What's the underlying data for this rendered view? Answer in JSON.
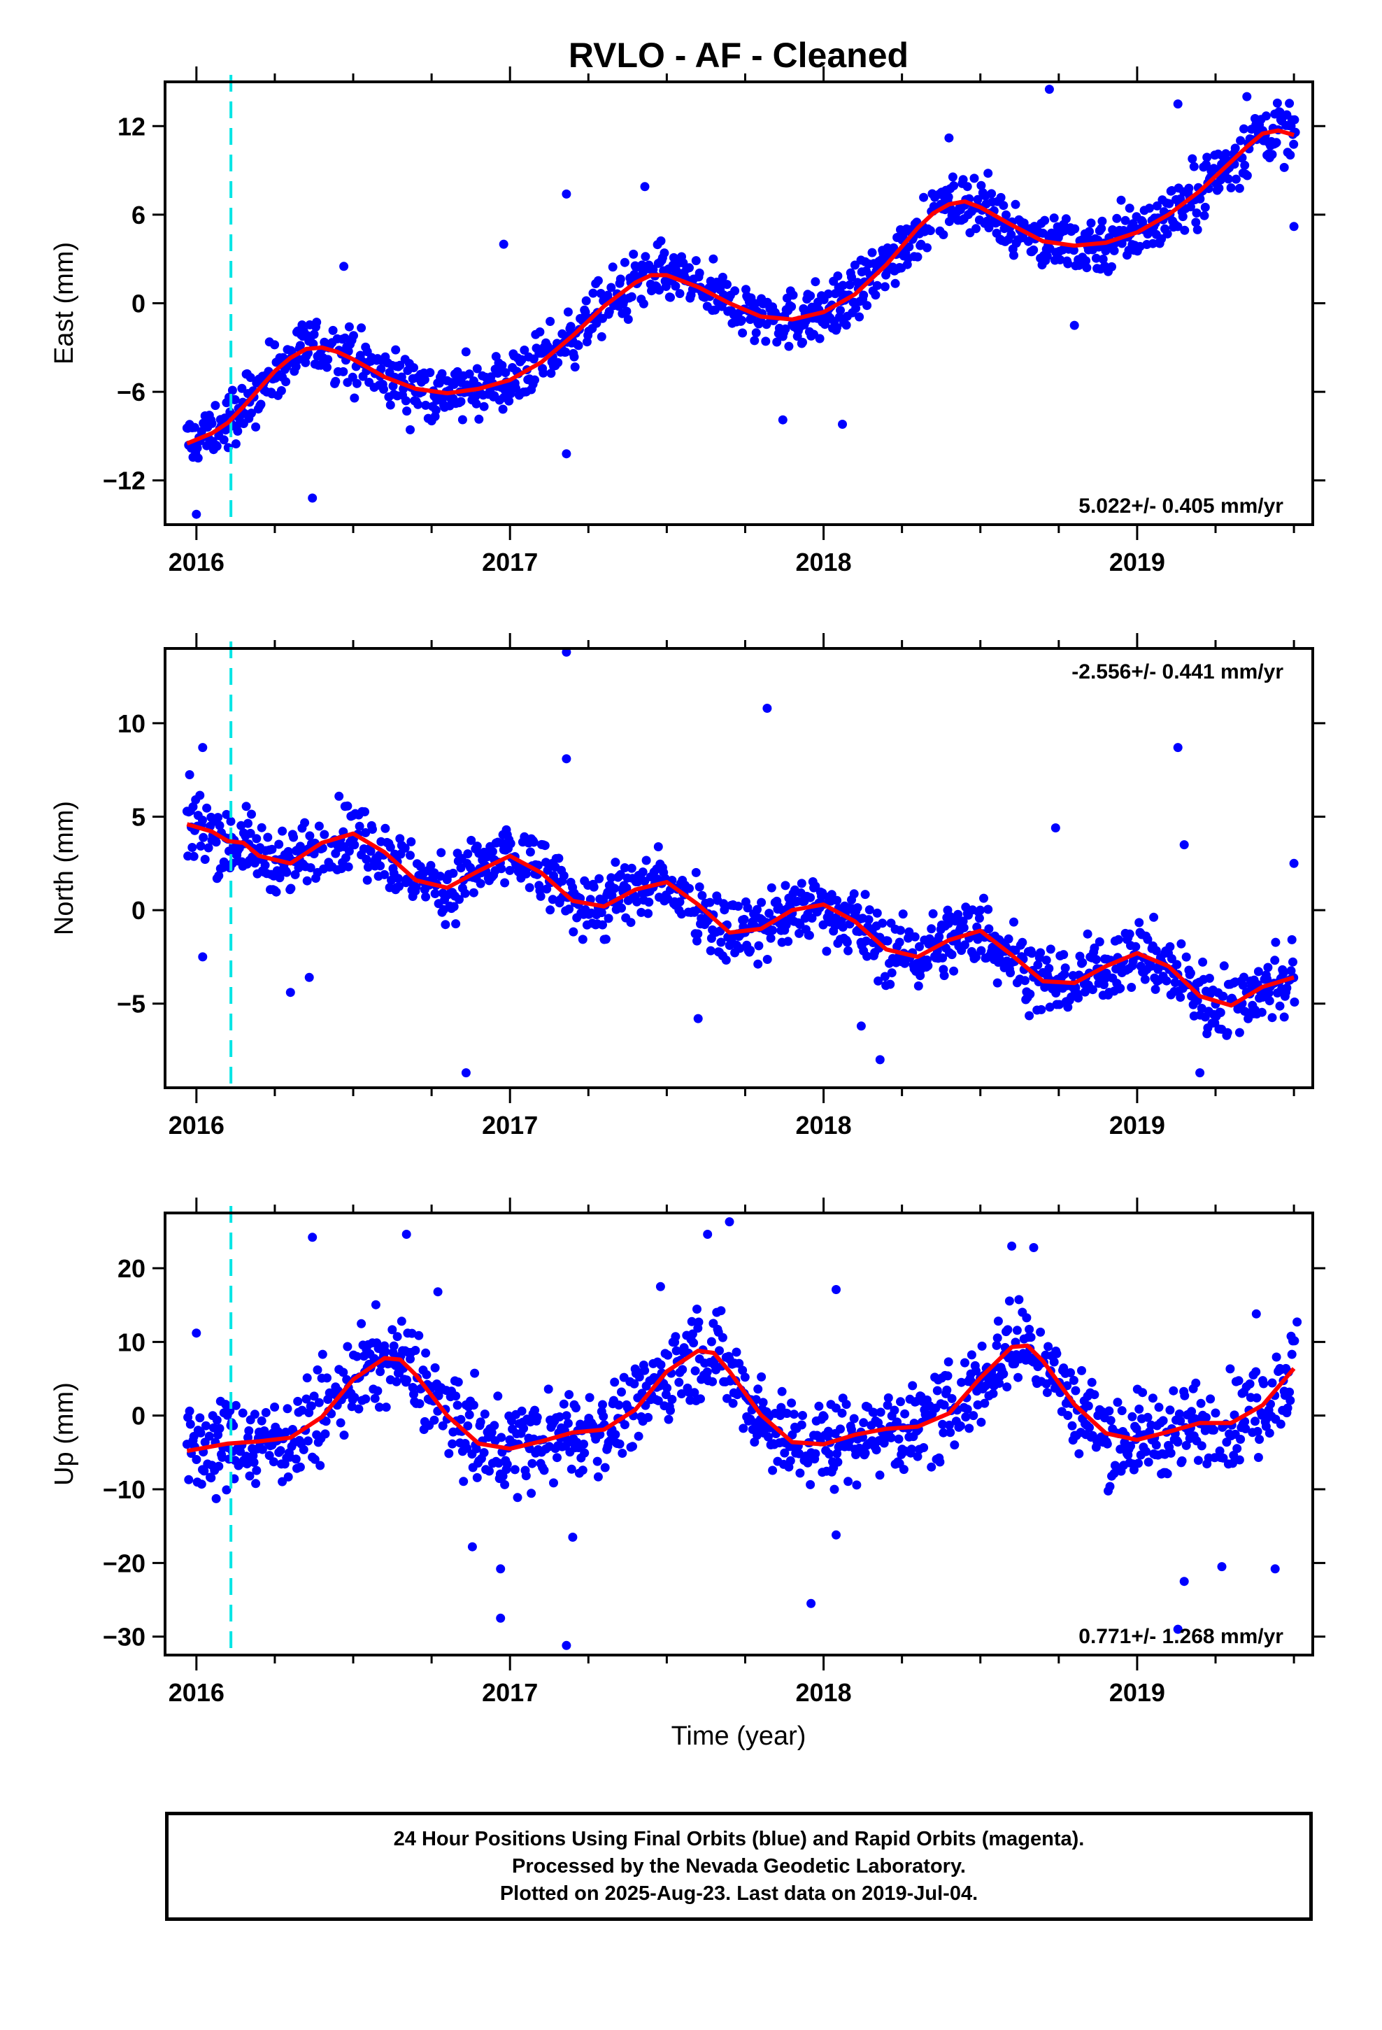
{
  "chart_data": {
    "type": "scatter",
    "title": "RVLO  - AF - Cleaned",
    "xlabel": "Time (year)",
    "x_ticks": [
      2016,
      2017,
      2018,
      2019
    ],
    "xlim": [
      2015.9,
      2019.56
    ],
    "event_marker_year": 2016.11,
    "colors": {
      "points": "#0000ff",
      "fit": "#ff0000",
      "event": "#00e5e5",
      "frame": "#000000"
    },
    "panels": [
      {
        "name": "east",
        "ylabel": "East (mm)",
        "ylim": [
          -15,
          15
        ],
        "y_ticks": [
          -12,
          -6,
          0,
          6,
          12
        ],
        "rate": "5.022+/- 0.405 mm/yr",
        "rate_position": "bottom-right",
        "trend": {
          "start": -9.4,
          "rate": 5.022
        },
        "fit": {
          "x": [
            2015.97,
            2016.05,
            2016.1,
            2016.15,
            2016.2,
            2016.25,
            2016.3,
            2016.35,
            2016.4,
            2016.45,
            2016.5,
            2016.55,
            2016.6,
            2016.7,
            2016.8,
            2016.9,
            2017.0,
            2017.1,
            2017.2,
            2017.3,
            2017.4,
            2017.45,
            2017.5,
            2017.6,
            2017.7,
            2017.8,
            2017.9,
            2018.0,
            2018.1,
            2018.2,
            2018.3,
            2018.35,
            2018.4,
            2018.45,
            2018.5,
            2018.6,
            2018.7,
            2018.8,
            2018.9,
            2019.0,
            2019.1,
            2019.2,
            2019.3,
            2019.35,
            2019.4,
            2019.45,
            2019.5
          ],
          "y": [
            -9.5,
            -8.8,
            -8.1,
            -7.0,
            -5.8,
            -4.6,
            -3.7,
            -3.1,
            -3.0,
            -3.3,
            -3.8,
            -4.4,
            -5.0,
            -5.8,
            -6.1,
            -5.8,
            -5.2,
            -4.0,
            -2.2,
            -0.2,
            1.4,
            1.9,
            1.9,
            1.1,
            0.0,
            -0.9,
            -1.1,
            -0.6,
            0.6,
            2.6,
            5.1,
            6.1,
            6.7,
            6.9,
            6.5,
            5.3,
            4.2,
            3.9,
            4.1,
            4.8,
            6.0,
            7.6,
            9.6,
            10.6,
            11.5,
            11.7,
            11.4
          ]
        },
        "residual_sd": 1.4,
        "outliers": [
          {
            "x": 2016.37,
            "y": -13.2
          },
          {
            "x": 2016.0,
            "y": -14.3
          },
          {
            "x": 2017.18,
            "y": 7.4
          },
          {
            "x": 2017.43,
            "y": 7.9
          },
          {
            "x": 2018.4,
            "y": 11.2
          },
          {
            "x": 2018.72,
            "y": 14.5
          },
          {
            "x": 2019.13,
            "y": 13.5
          },
          {
            "x": 2019.35,
            "y": 14.0
          },
          {
            "x": 2016.98,
            "y": 4.0
          },
          {
            "x": 2017.18,
            "y": -10.2
          },
          {
            "x": 2018.06,
            "y": -8.2
          },
          {
            "x": 2019.5,
            "y": 5.2
          },
          {
            "x": 2016.47,
            "y": 2.5
          },
          {
            "x": 2017.87,
            "y": -7.9
          },
          {
            "x": 2018.8,
            "y": -1.5
          }
        ]
      },
      {
        "name": "north",
        "ylabel": "North (mm)",
        "ylim": [
          -9.5,
          14
        ],
        "y_ticks": [
          -5,
          0,
          5,
          10
        ],
        "rate": "-2.556+/- 0.441 mm/yr",
        "rate_position": "top-right",
        "trend": {
          "start": 4.6,
          "rate": -2.556
        },
        "fit": {
          "x": [
            2015.97,
            2016.05,
            2016.1,
            2016.15,
            2016.2,
            2016.3,
            2016.4,
            2016.5,
            2016.6,
            2016.7,
            2016.8,
            2016.9,
            2017.0,
            2017.1,
            2017.2,
            2017.3,
            2017.4,
            2017.5,
            2017.6,
            2017.7,
            2017.8,
            2017.9,
            2018.0,
            2018.1,
            2018.2,
            2018.3,
            2018.4,
            2018.5,
            2018.6,
            2018.7,
            2018.8,
            2018.9,
            2019.0,
            2019.1,
            2019.2,
            2019.3,
            2019.4,
            2019.5
          ],
          "y": [
            4.6,
            4.2,
            3.7,
            3.6,
            2.9,
            2.5,
            3.6,
            4.1,
            3.1,
            1.6,
            1.2,
            2.1,
            2.9,
            2.0,
            0.5,
            0.2,
            1.1,
            1.5,
            0.3,
            -1.2,
            -1.0,
            0.0,
            0.3,
            -0.6,
            -2.1,
            -2.5,
            -1.6,
            -1.1,
            -2.4,
            -3.8,
            -3.9,
            -3.0,
            -2.3,
            -3.0,
            -4.6,
            -5.1,
            -4.1,
            -3.6
          ]
        },
        "residual_sd": 1.3,
        "outliers": [
          {
            "x": 2017.18,
            "y": 13.8
          },
          {
            "x": 2017.82,
            "y": 10.8
          },
          {
            "x": 2017.18,
            "y": 8.1
          },
          {
            "x": 2016.02,
            "y": 8.7
          },
          {
            "x": 2019.13,
            "y": 8.7
          },
          {
            "x": 2016.86,
            "y": -8.7
          },
          {
            "x": 2019.2,
            "y": -8.7
          },
          {
            "x": 2018.18,
            "y": -8.0
          },
          {
            "x": 2016.3,
            "y": -4.4
          },
          {
            "x": 2016.36,
            "y": -3.6
          },
          {
            "x": 2016.02,
            "y": -2.5
          },
          {
            "x": 2018.74,
            "y": 4.4
          },
          {
            "x": 2019.15,
            "y": 3.5
          },
          {
            "x": 2019.5,
            "y": 2.5
          },
          {
            "x": 2017.6,
            "y": -5.8
          },
          {
            "x": 2018.12,
            "y": -6.2
          }
        ]
      },
      {
        "name": "up",
        "ylabel": "Up (mm)",
        "ylim": [
          -32.5,
          27.5
        ],
        "y_ticks": [
          -30,
          -20,
          -10,
          0,
          10,
          20
        ],
        "rate": "0.771+/- 1.268 mm/yr",
        "rate_position": "bottom-right",
        "trend": {
          "start": -1.0,
          "rate": 0.771
        },
        "fit": {
          "x": [
            2015.97,
            2016.1,
            2016.2,
            2016.3,
            2016.4,
            2016.5,
            2016.6,
            2016.65,
            2016.7,
            2016.8,
            2016.9,
            2017.0,
            2017.1,
            2017.2,
            2017.3,
            2017.4,
            2017.5,
            2017.6,
            2017.65,
            2017.7,
            2017.8,
            2017.9,
            2018.0,
            2018.1,
            2018.2,
            2018.3,
            2018.4,
            2018.5,
            2018.6,
            2018.65,
            2018.7,
            2018.8,
            2018.9,
            2019.0,
            2019.1,
            2019.2,
            2019.3,
            2019.4,
            2019.5
          ],
          "y": [
            -4.8,
            -3.8,
            -3.5,
            -3.0,
            -0.2,
            4.9,
            7.8,
            7.6,
            5.5,
            0.0,
            -3.8,
            -4.5,
            -3.5,
            -2.3,
            -1.9,
            0.8,
            6.0,
            8.8,
            8.5,
            6.0,
            0.1,
            -3.6,
            -3.9,
            -2.6,
            -1.8,
            -1.5,
            0.3,
            5.1,
            9.3,
            9.5,
            7.4,
            1.5,
            -2.4,
            -3.3,
            -2.2,
            -1.0,
            -1.0,
            1.4,
            6.4
          ]
        },
        "residual_sd": 4.3,
        "outliers": [
          {
            "x": 2017.18,
            "y": -31.2
          },
          {
            "x": 2016.97,
            "y": -27.5
          },
          {
            "x": 2016.97,
            "y": -20.8
          },
          {
            "x": 2017.96,
            "y": -25.5
          },
          {
            "x": 2016.88,
            "y": -17.8
          },
          {
            "x": 2017.2,
            "y": -16.5
          },
          {
            "x": 2018.04,
            "y": -16.2
          },
          {
            "x": 2019.15,
            "y": -22.5
          },
          {
            "x": 2019.27,
            "y": -20.5
          },
          {
            "x": 2019.44,
            "y": -20.8
          },
          {
            "x": 2019.13,
            "y": -29.0
          },
          {
            "x": 2016.37,
            "y": 24.2
          },
          {
            "x": 2016.67,
            "y": 24.6
          },
          {
            "x": 2017.63,
            "y": 24.6
          },
          {
            "x": 2017.7,
            "y": 26.3
          },
          {
            "x": 2018.6,
            "y": 23.0
          },
          {
            "x": 2018.67,
            "y": 22.8
          },
          {
            "x": 2016.77,
            "y": 16.8
          },
          {
            "x": 2017.48,
            "y": 17.5
          },
          {
            "x": 2018.04,
            "y": 17.1
          },
          {
            "x": 2019.38,
            "y": 13.8
          },
          {
            "x": 2019.51,
            "y": 12.7
          },
          {
            "x": 2016.0,
            "y": 11.2
          }
        ]
      }
    ]
  },
  "footer": {
    "line1": "24 Hour Positions Using Final Orbits (blue) and Rapid Orbits (magenta).",
    "line2": "Processed by the Nevada Geodetic Laboratory.",
    "line3": "Plotted on 2025-Aug-23. Last data on 2019-Jul-04."
  }
}
